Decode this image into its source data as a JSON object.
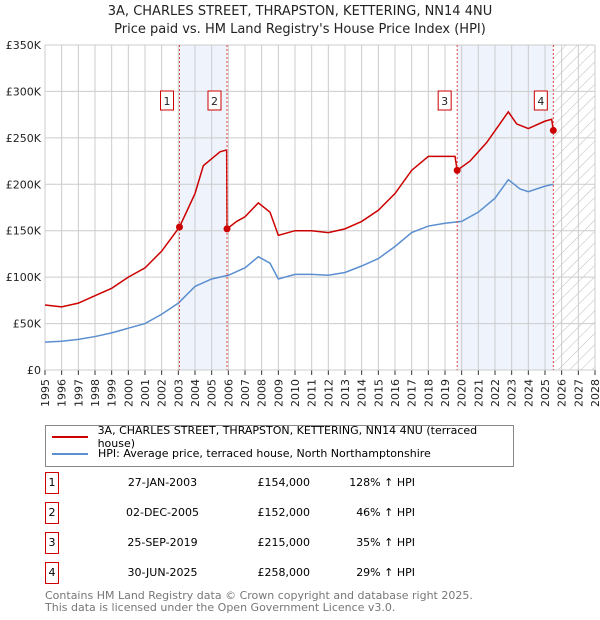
{
  "chart_data": {
    "type": "line",
    "title": "3A, CHARLES STREET, THRAPSTON, KETTERING, NN14 4NU",
    "subtitle": "Price paid vs. HM Land Registry's House Price Index (HPI)",
    "xlim": [
      1995,
      2028
    ],
    "ylim": [
      0,
      350000
    ],
    "yticks": [
      {
        "v": 0,
        "label": "£0"
      },
      {
        "v": 50000,
        "label": "£50K"
      },
      {
        "v": 100000,
        "label": "£100K"
      },
      {
        "v": 150000,
        "label": "£150K"
      },
      {
        "v": 200000,
        "label": "£200K"
      },
      {
        "v": 250000,
        "label": "£250K"
      },
      {
        "v": 300000,
        "label": "£300K"
      },
      {
        "v": 350000,
        "label": "£350K"
      }
    ],
    "xticks": [
      "1995",
      "1996",
      "1997",
      "1998",
      "1999",
      "2000",
      "2001",
      "2002",
      "2003",
      "2004",
      "2005",
      "2006",
      "2007",
      "2008",
      "2009",
      "2010",
      "2011",
      "2012",
      "2013",
      "2014",
      "2015",
      "2016",
      "2017",
      "2018",
      "2019",
      "2020",
      "2021",
      "2022",
      "2023",
      "2024",
      "2025",
      "2026",
      "2027",
      "2028"
    ],
    "series": [
      {
        "name": "3A, CHARLES STREET, THRAPSTON, KETTERING, NN14 4NU (terraced house)",
        "color": "#cc0000",
        "x": [
          1995,
          1996,
          1997,
          1998,
          1999,
          2000,
          2001,
          2002,
          2003.07,
          2004,
          2004.5,
          2005.5,
          2005.9,
          2005.92,
          2006.5,
          2007,
          2007.8,
          2008.5,
          2009,
          2010,
          2011,
          2012,
          2013,
          2014,
          2015,
          2016,
          2017,
          2018,
          2019.6,
          2019.73,
          2020.5,
          2021.5,
          2022.8,
          2023.3,
          2024,
          2025,
          2025.4,
          2025.5
        ],
        "y": [
          70000,
          68000,
          72000,
          80000,
          88000,
          100000,
          110000,
          128000,
          154000,
          190000,
          220000,
          235000,
          237000,
          152000,
          160000,
          165000,
          180000,
          170000,
          145000,
          150000,
          150000,
          148000,
          152000,
          160000,
          172000,
          190000,
          215000,
          230000,
          230000,
          215000,
          225000,
          245000,
          278000,
          265000,
          260000,
          268000,
          270000,
          258000
        ]
      },
      {
        "name": "HPI: Average price, terraced house, North Northamptonshire",
        "color": "#5b8fd0",
        "x": [
          1995,
          1996,
          1997,
          1998,
          1999,
          2000,
          2001,
          2002,
          2003,
          2004,
          2005,
          2006,
          2007,
          2007.8,
          2008.5,
          2009,
          2010,
          2011,
          2012,
          2013,
          2014,
          2015,
          2016,
          2017,
          2018,
          2019,
          2020,
          2021,
          2022,
          2022.8,
          2023.5,
          2024,
          2025,
          2025.5
        ],
        "y": [
          30000,
          31000,
          33000,
          36000,
          40000,
          45000,
          50000,
          60000,
          72000,
          90000,
          98000,
          102000,
          110000,
          122000,
          115000,
          98000,
          103000,
          103000,
          102000,
          105000,
          112000,
          120000,
          133000,
          148000,
          155000,
          158000,
          160000,
          170000,
          185000,
          205000,
          195000,
          192000,
          198000,
          200000
        ]
      }
    ],
    "sales": [
      {
        "n": "1",
        "x": 2003.07,
        "date": "27-JAN-2003",
        "price": "£154,000",
        "value": 154000,
        "hpi": "128% ↑ HPI"
      },
      {
        "n": "2",
        "x": 2005.92,
        "date": "02-DEC-2005",
        "price": "£152,000",
        "value": 152000,
        "hpi": "46% ↑ HPI"
      },
      {
        "n": "3",
        "x": 2019.73,
        "date": "25-SEP-2019",
        "price": "£215,000",
        "value": 215000,
        "hpi": "35% ↑ HPI"
      },
      {
        "n": "4",
        "x": 2025.5,
        "date": "30-JUN-2025",
        "price": "£258,000",
        "value": 258000,
        "hpi": "29% ↑ HPI"
      }
    ],
    "shaded": [
      [
        2003.07,
        2005.92
      ],
      [
        2019.73,
        2025.5
      ]
    ],
    "forecast_from": 2025.5
  },
  "footer": {
    "line1": "Contains HM Land Registry data © Crown copyright and database right 2025.",
    "line2": "This data is licensed under the Open Government Licence v3.0."
  }
}
